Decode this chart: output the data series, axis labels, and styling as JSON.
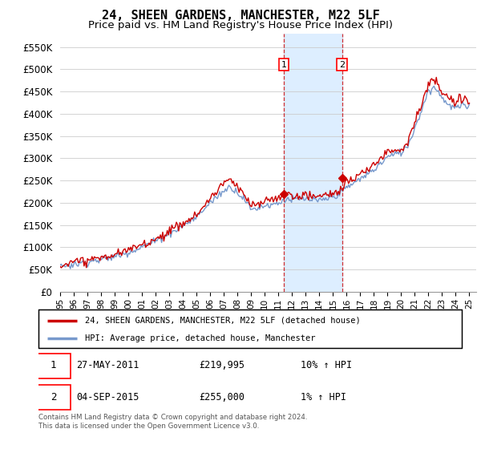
{
  "title": "24, SHEEN GARDENS, MANCHESTER, M22 5LF",
  "subtitle": "Price paid vs. HM Land Registry's House Price Index (HPI)",
  "title_fontsize": 11,
  "subtitle_fontsize": 9.5,
  "ytick_values": [
    0,
    50000,
    100000,
    150000,
    200000,
    250000,
    300000,
    350000,
    400000,
    450000,
    500000,
    550000
  ],
  "ylim": [
    0,
    580000
  ],
  "xlim_start": 1995.0,
  "xlim_end": 2025.5,
  "background_color": "#ffffff",
  "plot_bg_color": "#ffffff",
  "grid_color": "#cccccc",
  "red_line_color": "#cc0000",
  "blue_line_color": "#7799cc",
  "sale1_x": 2011.4,
  "sale2_x": 2015.67,
  "shade_color": "#ddeeff",
  "dashed_color": "#cc0000",
  "legend_label_red": "24, SHEEN GARDENS, MANCHESTER, M22 5LF (detached house)",
  "legend_label_blue": "HPI: Average price, detached house, Manchester",
  "table_row1": [
    "1",
    "27-MAY-2011",
    "£219,995",
    "10% ↑ HPI"
  ],
  "table_row2": [
    "2",
    "04-SEP-2015",
    "£255,000",
    "1% ↑ HPI"
  ],
  "footnote": "Contains HM Land Registry data © Crown copyright and database right 2024.\nThis data is licensed under the Open Government Licence v3.0.",
  "sale1_price": 219995,
  "sale2_price": 255000
}
